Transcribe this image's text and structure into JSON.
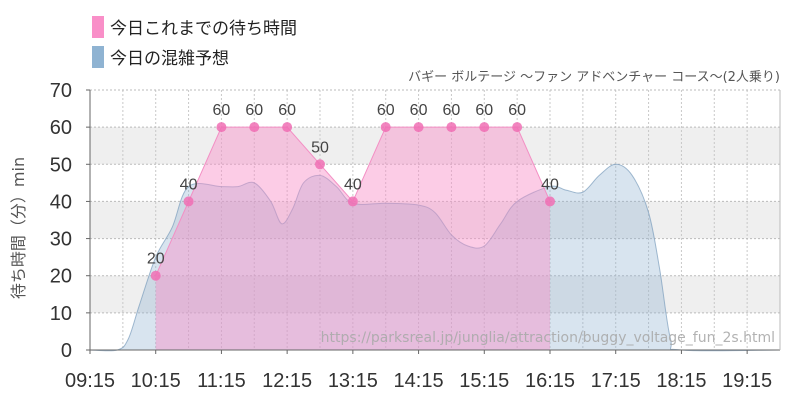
{
  "legend": [
    {
      "label": "今日これまでの待ち時間",
      "color": "#f98fc8"
    },
    {
      "label": "今日の混雑予想",
      "color": "#8fb3d2"
    }
  ],
  "subtitle": "バギー ボルテージ 〜ファン アドベンチャー コース〜(2人乗り)",
  "ylabel": "待ち時間（分）min",
  "watermark": "https://parksreal.jp/junglia/attraction/buggy_voltage_fun_2s.html",
  "chart_data": {
    "type": "area",
    "x_ticks": [
      "09:15",
      "10:15",
      "11:15",
      "12:15",
      "13:15",
      "14:15",
      "15:15",
      "16:15",
      "17:15",
      "18:15",
      "19:15"
    ],
    "y_ticks": [
      0,
      10,
      20,
      30,
      40,
      50,
      60,
      70
    ],
    "ylim": [
      0,
      70
    ],
    "xlim": [
      "09:15",
      "19:45"
    ],
    "grid": true,
    "series": [
      {
        "name": "今日の混雑予想",
        "color": "#8fb3d2",
        "points": [
          [
            "09:15",
            0
          ],
          [
            "09:40",
            0
          ],
          [
            "09:50",
            3
          ],
          [
            "10:00",
            12
          ],
          [
            "10:15",
            25
          ],
          [
            "10:30",
            33
          ],
          [
            "10:45",
            44
          ],
          [
            "11:15",
            44
          ],
          [
            "11:30",
            44
          ],
          [
            "11:45",
            45
          ],
          [
            "12:00",
            40
          ],
          [
            "12:10",
            34
          ],
          [
            "12:20",
            38
          ],
          [
            "12:30",
            45
          ],
          [
            "12:45",
            47
          ],
          [
            "13:00",
            44
          ],
          [
            "13:15",
            39.5
          ],
          [
            "13:45",
            39.5
          ],
          [
            "14:15",
            39
          ],
          [
            "14:30",
            37
          ],
          [
            "14:45",
            31
          ],
          [
            "15:00",
            28
          ],
          [
            "15:15",
            28
          ],
          [
            "15:30",
            34
          ],
          [
            "15:45",
            40
          ],
          [
            "16:15",
            44
          ],
          [
            "16:30",
            43
          ],
          [
            "16:45",
            42.5
          ],
          [
            "17:00",
            47
          ],
          [
            "17:15",
            50
          ],
          [
            "17:30",
            47
          ],
          [
            "17:45",
            37
          ],
          [
            "17:55",
            22
          ],
          [
            "18:05",
            3
          ],
          [
            "18:15",
            0
          ],
          [
            "19:45",
            0
          ]
        ]
      },
      {
        "name": "今日これまでの待ち時間",
        "color": "#f98fc8",
        "points": [
          [
            "10:15",
            20
          ],
          [
            "10:45",
            40
          ],
          [
            "11:15",
            60
          ],
          [
            "11:45",
            60
          ],
          [
            "12:15",
            60
          ],
          [
            "12:45",
            50
          ],
          [
            "13:15",
            40
          ],
          [
            "13:45",
            60
          ],
          [
            "14:15",
            60
          ],
          [
            "14:45",
            60
          ],
          [
            "15:15",
            60
          ],
          [
            "15:45",
            60
          ],
          [
            "16:15",
            40
          ]
        ],
        "labels": [
          "20",
          "40",
          "60",
          "60",
          "60",
          "50",
          "40",
          "60",
          "60",
          "60",
          "60",
          "60",
          "40"
        ]
      }
    ]
  }
}
